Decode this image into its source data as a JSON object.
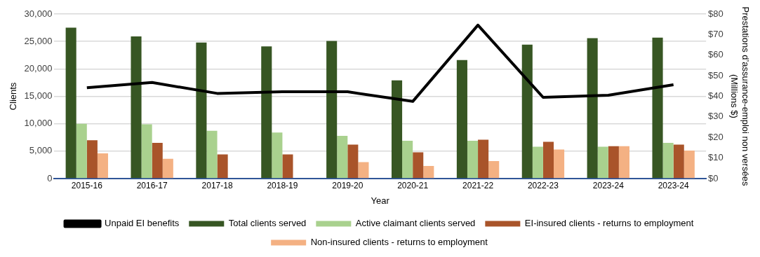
{
  "chart_data": {
    "type": "bar",
    "xlabel": "Year",
    "ylabel": "Clients",
    "y2label": "Prestations d’assurance-emploi non versées\n(Millions $)",
    "categories": [
      "2015-16",
      "2016-17",
      "2017-18",
      "2018-19",
      "2019-20",
      "2020-21",
      "2021-22",
      "2022-23",
      "2023-24",
      "2023-24"
    ],
    "series": [
      {
        "name": "Total clients served",
        "color": "#375623",
        "values": [
          27500,
          25900,
          24800,
          24100,
          25100,
          17900,
          21600,
          24400,
          25600,
          25700
        ]
      },
      {
        "name": "Active claimant clients served",
        "color": "#a9d18e",
        "values": [
          10000,
          9900,
          8700,
          8400,
          7800,
          6900,
          6900,
          5800,
          5800,
          6500
        ]
      },
      {
        "name": "EI-insured clients - returns to employment",
        "color": "#a9542a",
        "values": [
          7000,
          6500,
          4400,
          4400,
          6200,
          4800,
          7100,
          6700,
          5900,
          6200
        ]
      },
      {
        "name": "Non-insured clients - returns to employment",
        "color": "#f4b183",
        "values": [
          4600,
          3600,
          null,
          null,
          3000,
          2300,
          3200,
          5300,
          5900,
          5100
        ]
      },
      {
        "name": "Unpaid EI benefits",
        "type": "line",
        "axis": "y2",
        "color": "#000000",
        "marker": "none",
        "values": [
          44.2,
          46.7,
          41.4,
          42.2,
          42.2,
          37.5,
          74.6,
          39.5,
          40.5,
          45.6
        ]
      }
    ],
    "ylim": [
      0,
      30000
    ],
    "yticks": [
      {
        "value": 0,
        "label": "0"
      },
      {
        "value": 5000,
        "label": "5,000"
      },
      {
        "value": 10000,
        "label": "10,000"
      },
      {
        "value": 15000,
        "label": "15,000"
      },
      {
        "value": 20000,
        "label": "20,000"
      },
      {
        "value": 25000,
        "label": "25,000"
      },
      {
        "value": 30000,
        "label": "30,000"
      }
    ],
    "y2lim": [
      0,
      80
    ],
    "y2ticks": [
      {
        "value": 0,
        "label": "$0"
      },
      {
        "value": 10,
        "label": "$10"
      },
      {
        "value": 20,
        "label": "$20"
      },
      {
        "value": 30,
        "label": "$30"
      },
      {
        "value": 40,
        "label": "$40"
      },
      {
        "value": 50,
        "label": "$50"
      },
      {
        "value": 60,
        "label": "$60"
      },
      {
        "value": 70,
        "label": "$70"
      },
      {
        "value": 80,
        "label": "$80"
      }
    ],
    "grid": "y",
    "legend": "bottom"
  }
}
